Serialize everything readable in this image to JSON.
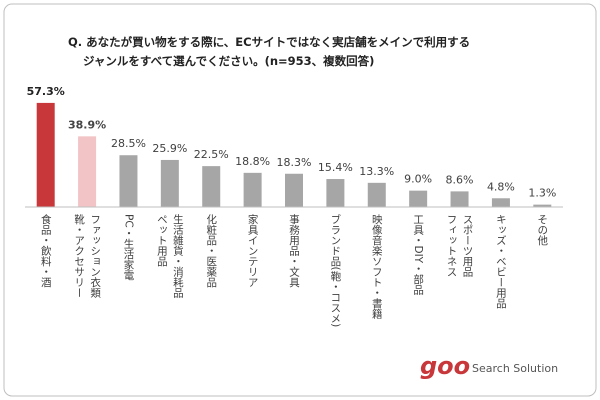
{
  "chart_data": {
    "type": "bar",
    "title": [
      "Q. あなたが買い物をする際に、ECサイトではなく実店舗をメインで利用する",
      "ジャンルをすべて選んでください。(n=953、複数回答)"
    ],
    "categories": [
      "食品・飲料・酒",
      [
        "ファッション衣類",
        "靴・アクセサリー"
      ],
      "PC・生活家電",
      [
        "生活雑貨・消耗品",
        "ペット用品"
      ],
      "化粧品・医薬品",
      "家具インテリア",
      "事務用品・文具",
      "ブランド品(鞄・コスメ)",
      "映像音楽ソフト・書籍",
      "工具・DIY・部品",
      [
        "スポーツ用品",
        "フィットネス"
      ],
      "キッズ・ベビー用品",
      "その他"
    ],
    "values": [
      57.3,
      38.9,
      28.5,
      25.9,
      22.5,
      18.8,
      18.3,
      15.4,
      13.3,
      9.0,
      8.6,
      4.8,
      1.3
    ],
    "value_labels": [
      "57.3%",
      "38.9%",
      "28.5%",
      "25.9%",
      "22.5%",
      "18.8%",
      "18.3%",
      "15.4%",
      "13.3%",
      "9.0%",
      "8.6%",
      "4.8%",
      "1.3%"
    ],
    "colors": [
      "#c8373a",
      "#f2c4c6",
      "#a6a6a6",
      "#a6a6a6",
      "#a6a6a6",
      "#a6a6a6",
      "#a6a6a6",
      "#a6a6a6",
      "#a6a6a6",
      "#a6a6a6",
      "#a6a6a6",
      "#a6a6a6",
      "#a6a6a6"
    ],
    "ylim": [
      0,
      60
    ],
    "logo": "goo",
    "logo_subtitle": "Search Solution"
  }
}
